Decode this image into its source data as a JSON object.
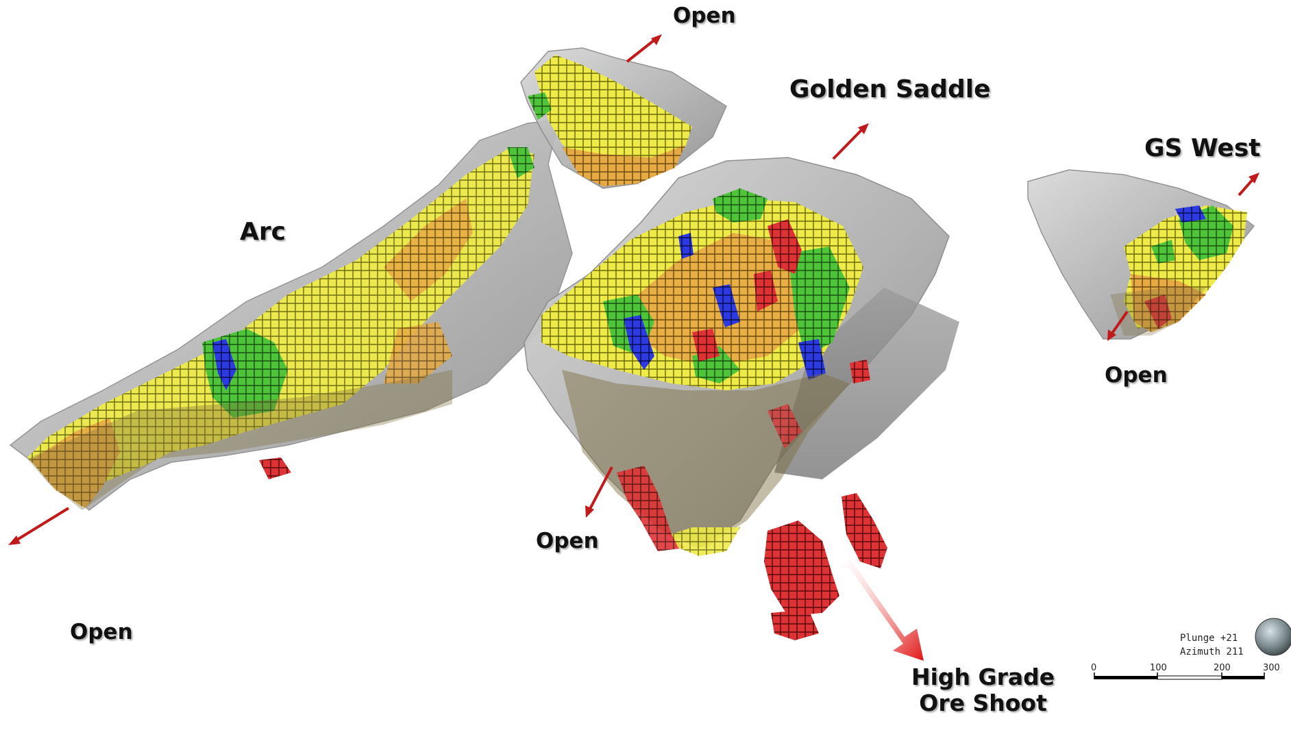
{
  "labels": {
    "arc": "Arc",
    "golden_saddle": "Golden Saddle",
    "gs_west": "GS West",
    "open_top": "Open",
    "open_left": "Open",
    "open_center": "Open",
    "open_right": "Open",
    "high_grade_line1": "High Grade",
    "high_grade_line2": "Ore Shoot"
  },
  "orientation": {
    "plunge": "Plunge +21",
    "azimuth": "Azimuth 211"
  },
  "scale_bar": {
    "ticks": [
      "0",
      "100",
      "200",
      "300"
    ]
  },
  "colors": {
    "shell_gray": "#b9b9b9",
    "block_yellow": "#e3dc1f",
    "block_orange": "#e3a12a",
    "block_green": "#3fb92b",
    "block_blue": "#1b2bd1",
    "block_red": "#d3282b",
    "arrow_red": "#c11a1a"
  },
  "block_legend_order": [
    "yellow",
    "orange",
    "green",
    "blue",
    "red"
  ]
}
